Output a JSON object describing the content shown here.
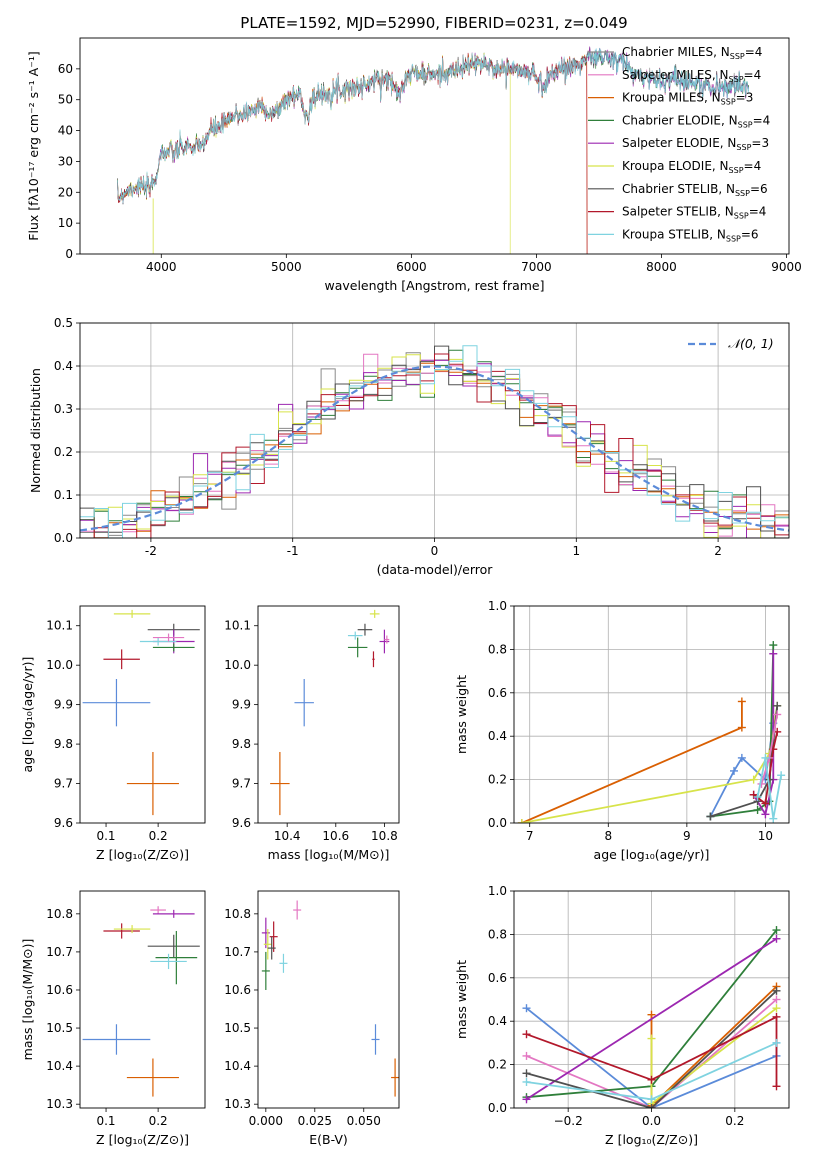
{
  "figure": {
    "title": "PLATE=1592, MJD=52990, FIBERID=0231, z=0.049"
  },
  "colors": {
    "Chabrier MILES": "#ffffff",
    "Salpeter MILES": "#e377c2",
    "Kroupa MILES": "#d95f02",
    "Chabrier ELODIE": "#2f7f3a",
    "Salpeter ELODIE": "#9c27b0",
    "Kroupa ELODIE": "#d7e34a",
    "Chabrier STELIB": "#505050",
    "Salpeter STELIB": "#b2182b",
    "Kroupa STELIB": "#7fd3e0",
    "gaussian": "#5b8bd9",
    "blue_point": "#5b8bd9"
  },
  "chart_data": [
    {
      "id": "spectrum",
      "type": "line",
      "title": "PLATE=1592, MJD=52990, FIBERID=0231, z=0.049",
      "xlabel": "wavelength [Angstrom, rest frame]",
      "ylabel": "Flux [fλ10⁻¹⁷ erg cm⁻² s⁻¹ A⁻¹]",
      "xlim": [
        3350,
        9020
      ],
      "ylim": [
        0,
        70
      ],
      "xticks": [
        4000,
        5000,
        6000,
        7000,
        8000,
        9000
      ],
      "yticks": [
        0,
        10,
        20,
        30,
        40,
        50,
        60
      ],
      "grid": false,
      "legend_position": "top-right",
      "legend": [
        {
          "label": "Chabrier MILES, N",
          "sub": "SSP",
          "suffix": "=4"
        },
        {
          "label": "Salpeter MILES, N",
          "sub": "SSP",
          "suffix": "=4"
        },
        {
          "label": "Kroupa MILES, N",
          "sub": "SSP",
          "suffix": "=3"
        },
        {
          "label": "Chabrier ELODIE, N",
          "sub": "SSP",
          "suffix": "=4"
        },
        {
          "label": "Salpeter ELODIE, N",
          "sub": "SSP",
          "suffix": "=3"
        },
        {
          "label": "Kroupa ELODIE, N",
          "sub": "SSP",
          "suffix": "=4"
        },
        {
          "label": "Chabrier STELIB, N",
          "sub": "SSP",
          "suffix": "=6"
        },
        {
          "label": "Salpeter STELIB, N",
          "sub": "SSP",
          "suffix": "=4"
        },
        {
          "label": "Kroupa STELIB, N",
          "sub": "SSP",
          "suffix": "=6"
        }
      ],
      "continuum": {
        "x": [
          3650,
          3700,
          3800,
          3900,
          3950,
          4000,
          4100,
          4200,
          4300,
          4400,
          4500,
          4600,
          4700,
          4800,
          4900,
          5000,
          5100,
          5170,
          5200,
          5300,
          5400,
          5500,
          5600,
          5700,
          5800,
          5890,
          5950,
          6000,
          6100,
          6200,
          6300,
          6400,
          6500,
          6600,
          6700,
          6800,
          6900,
          7000,
          7050,
          7100,
          7200,
          7300,
          7400,
          7500,
          7600,
          7700,
          7800,
          7900,
          8000,
          8100,
          8200,
          8300,
          8400,
          8500,
          8600,
          8700
        ],
        "y": [
          18,
          20,
          22,
          21,
          24,
          33,
          33,
          35,
          34,
          40,
          42,
          45,
          46,
          48,
          45,
          50,
          52,
          44,
          50,
          52,
          53,
          54,
          54,
          56,
          57,
          53,
          56,
          59,
          58,
          58,
          59,
          60,
          62,
          61,
          60,
          60,
          59,
          58,
          54,
          58,
          60,
          61,
          63,
          64,
          63,
          62,
          58,
          57,
          56,
          57,
          56,
          55,
          54,
          54,
          55,
          53
        ]
      },
      "dropouts": [
        {
          "name": "Kroupa ELODIE",
          "x": 3935
        },
        {
          "name": "Kroupa ELODIE",
          "x": 6790
        },
        {
          "name": "Kroupa MILES",
          "x": 7405
        },
        {
          "name": "Salpeter STELIB",
          "x": 7405
        }
      ]
    },
    {
      "id": "residuals",
      "type": "histogram",
      "xlabel": "(data-model)/error",
      "ylabel": "Normed distribution",
      "xlim": [
        -2.5,
        2.5
      ],
      "ylim": [
        0,
        0.5
      ],
      "xticks": [
        -2,
        -1,
        0,
        1,
        2
      ],
      "yticks": [
        0.0,
        0.1,
        0.2,
        0.3,
        0.4,
        0.5
      ],
      "grid": true,
      "legend_position": "top-right",
      "legend": [
        {
          "label": "𝒩(0, 1)",
          "style": "dashed"
        }
      ],
      "bin_width": 0.1,
      "gaussian": {
        "mean": 0,
        "sigma": 1
      }
    },
    {
      "id": "age_vs_Z",
      "type": "errorbar",
      "xlabel": "Z [log₁₀(Z/Z⊙)]",
      "ylabel": "age  [log₁₀(age/yr)]",
      "xlim": [
        0.05,
        0.29
      ],
      "ylim": [
        9.6,
        10.15
      ],
      "xticks": [
        0.1,
        0.2
      ],
      "yticks": [
        9.6,
        9.7,
        9.8,
        9.9,
        10.0,
        10.1
      ],
      "points": [
        {
          "name": "Kroupa ELODIE",
          "x": 0.15,
          "y": 10.13,
          "xerr": 0.035,
          "yerr": 0.0
        },
        {
          "name": "Salpeter STELIB",
          "x": 0.13,
          "y": 10.015,
          "xerr": 0.035,
          "yerr": 0.025
        },
        {
          "name": "Chabrier STELIB",
          "x": 0.23,
          "y": 10.09,
          "xerr": 0.05,
          "yerr": 0.015
        },
        {
          "name": "Salpeter ELODIE",
          "x": 0.23,
          "y": 10.06,
          "xerr": 0.04,
          "yerr": 0.03
        },
        {
          "name": "Chabrier ELODIE",
          "x": 0.23,
          "y": 10.045,
          "xerr": 0.04,
          "yerr": 0.0
        },
        {
          "name": "Kroupa STELIB",
          "x": 0.2,
          "y": 10.06,
          "xerr": 0.035,
          "yerr": 0.0
        },
        {
          "name": "Salpeter MILES",
          "x": 0.22,
          "y": 10.07,
          "xerr": 0.03,
          "yerr": 0.0
        },
        {
          "name": "blue",
          "x": 0.12,
          "y": 9.905,
          "xerr": 0.065,
          "yerr": 0.06
        },
        {
          "name": "Kroupa MILES",
          "x": 0.19,
          "y": 9.7,
          "xerr": 0.05,
          "yerr": 0.08
        }
      ]
    },
    {
      "id": "age_vs_mass",
      "type": "errorbar",
      "xlabel": "mass [log₁₀(M/M⊙)]",
      "ylabel": "",
      "xlim": [
        10.28,
        10.86
      ],
      "ylim": [
        9.6,
        10.15
      ],
      "xticks": [
        10.4,
        10.6,
        10.8
      ],
      "yticks": [
        9.6,
        9.7,
        9.8,
        9.9,
        10.0,
        10.1
      ],
      "points": [
        {
          "name": "Kroupa ELODIE",
          "x": 10.76,
          "y": 10.13,
          "xerr": 0.02,
          "yerr": 0.0
        },
        {
          "name": "Chabrier STELIB",
          "x": 10.72,
          "y": 10.09,
          "xerr": 0.03,
          "yerr": 0.015
        },
        {
          "name": "Kroupa STELIB",
          "x": 10.68,
          "y": 10.075,
          "xerr": 0.03,
          "yerr": 0.0
        },
        {
          "name": "Chabrier ELODIE",
          "x": 10.69,
          "y": 10.045,
          "xerr": 0.04,
          "yerr": 0.025
        },
        {
          "name": "Salpeter ELODIE",
          "x": 10.8,
          "y": 10.06,
          "xerr": 0.02,
          "yerr": 0.03
        },
        {
          "name": "Salpeter MILES",
          "x": 10.81,
          "y": 10.065,
          "xerr": 0.01,
          "yerr": 0.0
        },
        {
          "name": "Salpeter STELIB",
          "x": 10.755,
          "y": 10.015,
          "xerr": 0.005,
          "yerr": 0.02
        },
        {
          "name": "blue",
          "x": 10.47,
          "y": 9.905,
          "xerr": 0.04,
          "yerr": 0.06
        },
        {
          "name": "Kroupa MILES",
          "x": 10.37,
          "y": 9.7,
          "xerr": 0.04,
          "yerr": 0.08
        }
      ]
    },
    {
      "id": "mass_weight_vs_age",
      "type": "line",
      "xlabel": "age  [log₁₀(age/yr)]",
      "ylabel": "mass weight",
      "xlim": [
        6.8,
        10.3
      ],
      "ylim": [
        0,
        1.0
      ],
      "xticks": [
        7,
        8,
        9,
        10
      ],
      "yticks": [
        0.0,
        0.2,
        0.4,
        0.6,
        0.8,
        1.0
      ],
      "grid": true,
      "series": [
        {
          "name": "Kroupa MILES",
          "x": [
            6.9,
            9.7,
            9.7
          ],
          "y": [
            0.0,
            0.44,
            0.56
          ]
        },
        {
          "name": "blue",
          "x": [
            9.3,
            9.6,
            9.7,
            10.0,
            10.1
          ],
          "y": [
            0.03,
            0.24,
            0.3,
            0.2,
            0.46
          ]
        },
        {
          "name": "Kroupa ELODIE",
          "x": [
            6.9,
            9.85,
            10.05,
            10.15
          ],
          "y": [
            0.0,
            0.2,
            0.32,
            0.54
          ]
        },
        {
          "name": "Chabrier ELODIE",
          "x": [
            9.3,
            9.9,
            10.05,
            10.1
          ],
          "y": [
            0.03,
            0.06,
            0.1,
            0.82
          ]
        },
        {
          "name": "Salpeter ELODIE",
          "x": [
            9.85,
            10.0,
            10.1,
            10.1
          ],
          "y": [
            0.13,
            0.04,
            0.2,
            0.78
          ]
        },
        {
          "name": "Chabrier STELIB",
          "x": [
            9.3,
            9.9,
            10.05,
            10.15
          ],
          "y": [
            0.03,
            0.1,
            0.2,
            0.54
          ]
        },
        {
          "name": "Salpeter STELIB",
          "x": [
            9.85,
            10.0,
            10.1,
            10.15
          ],
          "y": [
            0.13,
            0.09,
            0.34,
            0.42
          ]
        },
        {
          "name": "Salpeter MILES",
          "x": [
            9.95,
            10.05,
            10.15
          ],
          "y": [
            0.18,
            0.3,
            0.5
          ]
        },
        {
          "name": "Kroupa STELIB",
          "x": [
            9.9,
            10.0,
            10.1,
            10.2
          ],
          "y": [
            0.12,
            0.3,
            0.02,
            0.22
          ]
        }
      ]
    },
    {
      "id": "mass_vs_Z",
      "type": "errorbar",
      "xlabel": "Z [log₁₀(Z/Z⊙)]",
      "ylabel": "mass [log₁₀(M/M⊙)]",
      "xlim": [
        0.05,
        0.29
      ],
      "ylim": [
        10.29,
        10.86
      ],
      "xticks": [
        0.1,
        0.2
      ],
      "yticks": [
        10.3,
        10.4,
        10.5,
        10.6,
        10.7,
        10.8
      ],
      "points": [
        {
          "name": "Salpeter MILES",
          "x": 0.2,
          "y": 10.81,
          "xerr": 0.015,
          "yerr": 0.01
        },
        {
          "name": "Salpeter ELODIE",
          "x": 0.23,
          "y": 10.8,
          "xerr": 0.04,
          "yerr": 0.0
        },
        {
          "name": "Salpeter STELIB",
          "x": 0.13,
          "y": 10.755,
          "xerr": 0.035,
          "yerr": 0.02
        },
        {
          "name": "Kroupa ELODIE",
          "x": 0.15,
          "y": 10.76,
          "xerr": 0.035,
          "yerr": 0.0
        },
        {
          "name": "Chabrier STELIB",
          "x": 0.23,
          "y": 10.715,
          "xerr": 0.05,
          "yerr": 0.03
        },
        {
          "name": "Chabrier ELODIE",
          "x": 0.235,
          "y": 10.685,
          "xerr": 0.04,
          "yerr": 0.07
        },
        {
          "name": "Kroupa STELIB",
          "x": 0.22,
          "y": 10.675,
          "xerr": 0.035,
          "yerr": 0.02
        },
        {
          "name": "blue",
          "x": 0.12,
          "y": 10.47,
          "xerr": 0.065,
          "yerr": 0.04
        },
        {
          "name": "Kroupa MILES",
          "x": 0.19,
          "y": 10.37,
          "xerr": 0.05,
          "yerr": 0.05
        }
      ]
    },
    {
      "id": "mass_vs_ebv",
      "type": "errorbar",
      "xlabel": "E(B-V)",
      "ylabel": "",
      "xlim": [
        -0.004,
        0.068
      ],
      "ylim": [
        10.29,
        10.86
      ],
      "xticks": [
        0.0,
        0.025,
        0.05
      ],
      "xtick_labels": [
        "0.000",
        "0.025",
        "0.050"
      ],
      "yticks": [
        10.3,
        10.4,
        10.5,
        10.6,
        10.7,
        10.8
      ],
      "points": [
        {
          "name": "Salpeter MILES",
          "x": 0.016,
          "y": 10.81,
          "xerr": 0.0,
          "yerr": 0.025
        },
        {
          "name": "Salpeter ELODIE",
          "x": 0.0,
          "y": 10.75,
          "xerr": 0.0,
          "yerr": 0.04
        },
        {
          "name": "Kroupa ELODIE",
          "x": 0.001,
          "y": 10.72,
          "xerr": 0.0,
          "yerr": 0.04
        },
        {
          "name": "Salpeter STELIB",
          "x": 0.004,
          "y": 10.74,
          "xerr": 0.0,
          "yerr": 0.04
        },
        {
          "name": "Chabrier STELIB",
          "x": 0.003,
          "y": 10.71,
          "xerr": 0.0,
          "yerr": 0.03
        },
        {
          "name": "Chabrier ELODIE",
          "x": 0.0,
          "y": 10.65,
          "xerr": 0.0,
          "yerr": 0.05
        },
        {
          "name": "Kroupa STELIB",
          "x": 0.009,
          "y": 10.67,
          "xerr": 0.0,
          "yerr": 0.025
        },
        {
          "name": "blue",
          "x": 0.056,
          "y": 10.47,
          "xerr": 0.0,
          "yerr": 0.04
        },
        {
          "name": "Kroupa MILES",
          "x": 0.066,
          "y": 10.37,
          "xerr": 0.0,
          "yerr": 0.05
        }
      ]
    },
    {
      "id": "mass_weight_vs_Z",
      "type": "line",
      "xlabel": "Z [log₁₀(Z/Z⊙)]",
      "ylabel": "mass weight",
      "xlim": [
        -0.33,
        0.33
      ],
      "ylim": [
        0,
        1.0
      ],
      "xticks": [
        -0.2,
        0.0,
        0.2
      ],
      "xtick_labels": [
        "−0.2",
        "0.0",
        "0.2"
      ],
      "yticks": [
        0.0,
        0.2,
        0.4,
        0.6,
        0.8,
        1.0
      ],
      "grid": true,
      "series": [
        {
          "name": "blue",
          "x": [
            -0.3,
            0.0,
            0.3,
            0.3
          ],
          "y": [
            0.46,
            0.0,
            0.24,
            0.3
          ]
        },
        {
          "name": "Salpeter MILES",
          "x": [
            -0.3,
            0.0,
            0.3
          ],
          "y": [
            0.24,
            0.0,
            0.5
          ]
        },
        {
          "name": "Kroupa MILES",
          "x": [
            0.0,
            0.0,
            0.3
          ],
          "y": [
            0.43,
            0.01,
            0.56
          ]
        },
        {
          "name": "Chabrier ELODIE",
          "x": [
            -0.3,
            0.0,
            0.3
          ],
          "y": [
            0.05,
            0.1,
            0.82
          ]
        },
        {
          "name": "Salpeter ELODIE",
          "x": [
            -0.3,
            0.3
          ],
          "y": [
            0.04,
            0.78
          ]
        },
        {
          "name": "Kroupa ELODIE",
          "x": [
            0.0,
            0.0,
            0.3
          ],
          "y": [
            0.32,
            0.02,
            0.46
          ]
        },
        {
          "name": "Chabrier STELIB",
          "x": [
            -0.3,
            0.0,
            0.3
          ],
          "y": [
            0.16,
            0.0,
            0.54
          ]
        },
        {
          "name": "Salpeter STELIB",
          "x": [
            -0.3,
            0.0,
            0.3,
            0.3
          ],
          "y": [
            0.34,
            0.13,
            0.42,
            0.1
          ]
        },
        {
          "name": "Kroupa STELIB",
          "x": [
            -0.3,
            0.0,
            0.3
          ],
          "y": [
            0.12,
            0.04,
            0.3
          ]
        }
      ]
    }
  ]
}
